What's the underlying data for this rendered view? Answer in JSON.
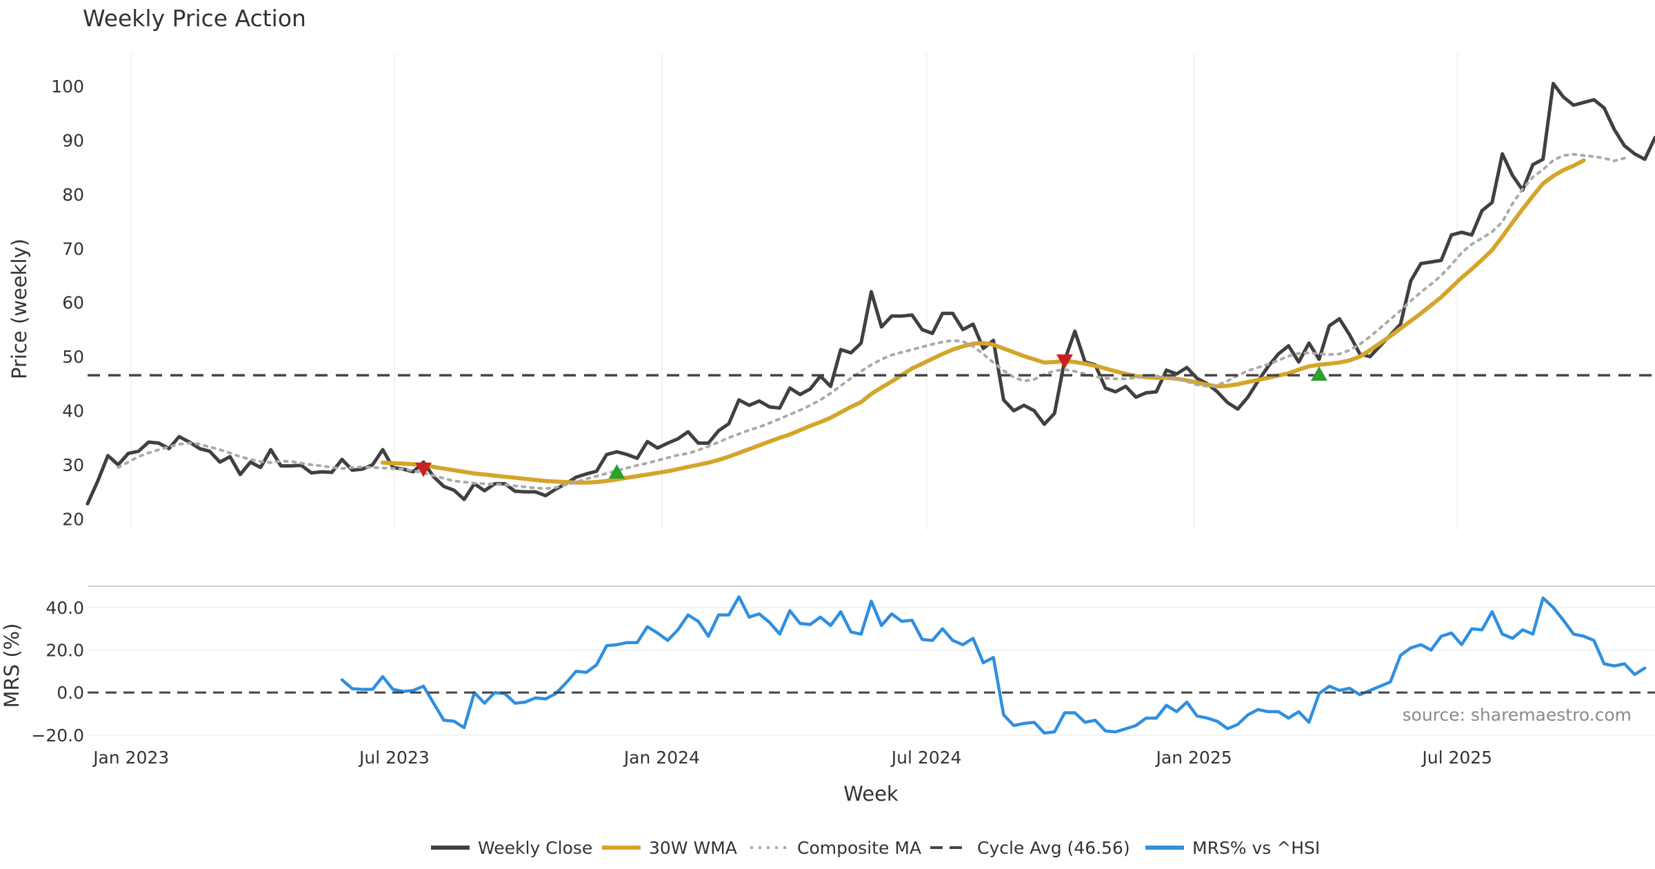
{
  "chart_data": [
    {
      "type": "line",
      "panel": "price",
      "title": "Weekly Price Action",
      "ylabel": "Price (weekly)",
      "xlabel": "Week",
      "x_axis": {
        "start": "2022-12-02",
        "end": "2025-11-14",
        "tick_labels": [
          "Jan 2023",
          "Jul 2023",
          "Jan 2024",
          "Jul 2024",
          "Jan 2025",
          "Jul 2025"
        ],
        "tick_dates": [
          "2023-01-01",
          "2023-07-01",
          "2024-01-01",
          "2024-07-01",
          "2025-01-01",
          "2025-07-01"
        ]
      },
      "ylim": [
        18,
        106
      ],
      "yticks": [
        20,
        30,
        40,
        50,
        60,
        70,
        80,
        90,
        100
      ],
      "grid": true,
      "series": [
        {
          "name": "Weekly Close",
          "color": "#404040",
          "style": "solid",
          "start_week": 0,
          "values": [
            22.8,
            27,
            31.7,
            30,
            32.1,
            32.5,
            34.2,
            34,
            33,
            35.2,
            34.2,
            33,
            32.5,
            30.5,
            31.5,
            28.2,
            30.5,
            29.5,
            32.8,
            29.8,
            29.8,
            29.9,
            28.5,
            28.7,
            28.6,
            31,
            29,
            29.2,
            30,
            32.8,
            29.5,
            29.2,
            28.7,
            30.5,
            27.8,
            26,
            25.3,
            23.6,
            26.5,
            25.2,
            26.5,
            26.5,
            25.1,
            25,
            25,
            24.3,
            25.5,
            26.5,
            27.7,
            28.3,
            28.8,
            31.9,
            32.4,
            31.9,
            31.2,
            34.3,
            33.1,
            34,
            34.8,
            36.1,
            34,
            34,
            36.3,
            37.6,
            42,
            41,
            41.8,
            40.7,
            40.5,
            44.2,
            43,
            44,
            46.4,
            44.5,
            51.3,
            50.7,
            52.5,
            62,
            55.5,
            57.5,
            57.5,
            57.7,
            55,
            54.3,
            58,
            58,
            55,
            56,
            51.5,
            53,
            42,
            40,
            41,
            40,
            37.5,
            39.5,
            49.3,
            54.7,
            49,
            48.5,
            44.2,
            43.5,
            44.5,
            42.5,
            43.3,
            43.5,
            47.5,
            46.8,
            48,
            46,
            45,
            43.5,
            41.5,
            40.3,
            42.5,
            45.5,
            48.2,
            50.5,
            52,
            49,
            52.5,
            49.5,
            55.7,
            57,
            54,
            50.5,
            50,
            52,
            54,
            56,
            64,
            67.2,
            67.5,
            67.8,
            72.5,
            73,
            72.5,
            77,
            78.5,
            87.5,
            83.5,
            80.8,
            85.5,
            86.5,
            100.5,
            98,
            96.5,
            97,
            97.5,
            96,
            92,
            89,
            87.5,
            86.5,
            90.5
          ]
        },
        {
          "name": "30W WMA",
          "color": "#d4a52a",
          "style": "solid",
          "start_week": 29,
          "values": [
            30.4,
            30.3,
            30.2,
            30.1,
            30,
            29.6,
            29.3,
            29,
            28.7,
            28.4,
            28.2,
            28,
            27.8,
            27.6,
            27.4,
            27.2,
            27,
            26.9,
            26.8,
            26.7,
            26.7,
            26.8,
            27,
            27.3,
            27.6,
            27.9,
            28.2,
            28.5,
            28.8,
            29.2,
            29.6,
            30,
            30.4,
            30.9,
            31.5,
            32.2,
            32.9,
            33.6,
            34.3,
            35,
            35.6,
            36.4,
            37.2,
            37.9,
            38.7,
            39.7,
            40.7,
            41.6,
            43.1,
            44.3,
            45.4,
            46.6,
            47.8,
            48.7,
            49.6,
            50.5,
            51.3,
            51.9,
            52.4,
            52.5,
            52.2,
            51.5,
            50.8,
            50.1,
            49.5,
            48.9,
            49,
            49.2,
            49,
            48.7,
            48.3,
            47.8,
            47.3,
            46.8,
            46.4,
            46.2,
            46.1,
            46.1,
            45.9,
            45.6,
            45.2,
            44.8,
            44.5,
            44.6,
            44.9,
            45.3,
            45.7,
            46.1,
            46.5,
            46.9,
            47.6,
            48.2,
            48.5,
            48.7,
            48.9,
            49.3,
            50,
            51.2,
            52.5,
            53.8,
            55.2,
            56.6,
            58,
            59.5,
            61,
            62.8,
            64.6,
            66.2,
            67.9,
            69.7,
            72.2,
            74.8,
            77.3,
            79.7,
            82,
            83.4,
            84.5,
            85.3,
            86.3
          ]
        },
        {
          "name": "Composite MA",
          "color": "#aaaaaa",
          "style": "dotted",
          "start_week": 3,
          "values": [
            29.5,
            30.5,
            31.5,
            32.2,
            32.8,
            33.3,
            33.8,
            34,
            33.8,
            33.3,
            32.8,
            32.2,
            31.5,
            31,
            30.6,
            30.4,
            30.7,
            30.6,
            30.3,
            30,
            29.8,
            29.5,
            29.3,
            29.5,
            29.6,
            29.5,
            29.4,
            29.3,
            29.2,
            28.9,
            28.5,
            28,
            27.5,
            27,
            26.8,
            26.6,
            26.5,
            26.4,
            26.3,
            26.1,
            25.9,
            25.7,
            25.6,
            25.8,
            26.3,
            26.8,
            27.4,
            27.9,
            28.4,
            28.9,
            29.4,
            29.9,
            30.3,
            30.8,
            31.3,
            31.8,
            32.1,
            32.7,
            33.4,
            34.2,
            35,
            35.7,
            36.4,
            37,
            37.7,
            38.5,
            39.3,
            40.1,
            41,
            42,
            43.2,
            44.6,
            46,
            47.3,
            48.5,
            49.5,
            50.3,
            50.8,
            51.3,
            51.8,
            52.3,
            52.7,
            53,
            52.8,
            51.9,
            50.5,
            48.9,
            47.4,
            46.2,
            45.5,
            45.8,
            46.7,
            47.4,
            47.6,
            47.3,
            46.8,
            46.3,
            46,
            45.9,
            45.9,
            46.1,
            46.3,
            46.4,
            46.3,
            45.9,
            45.4,
            44.8,
            44.5,
            44.7,
            45.5,
            46.5,
            47.4,
            48,
            48.6,
            49.3,
            50.1,
            50.6,
            50.7,
            50.5,
            50.4,
            50.5,
            51.2,
            52.3,
            53.7,
            55.3,
            56.9,
            58.5,
            60.3,
            61.9,
            63.4,
            65,
            67,
            69.2,
            70.8,
            71.9,
            73.1,
            74.9,
            78.3,
            81,
            83.2,
            84.6,
            86.3,
            87.2,
            87.4,
            87.2,
            87,
            86.7,
            86.2,
            86.7
          ]
        },
        {
          "name": "Cycle Avg (46.56)",
          "color": "#444444",
          "style": "dashed",
          "value": 46.56
        }
      ],
      "annotations": [
        {
          "type": "sell-signal",
          "marker": "triangle-down",
          "color": "#cc1f1f",
          "week": 33,
          "value": 29
        },
        {
          "type": "buy-signal",
          "marker": "triangle-up",
          "color": "#2ca02c",
          "week": 52,
          "value": 28.7
        },
        {
          "type": "sell-signal",
          "marker": "triangle-down",
          "color": "#cc1f1f",
          "week": 96,
          "value": 49
        },
        {
          "type": "buy-signal",
          "marker": "triangle-up",
          "color": "#2ca02c",
          "week": 121,
          "value": 46.8
        }
      ]
    },
    {
      "type": "line",
      "panel": "mrs",
      "ylabel": "MRS (%)",
      "ylim": [
        -22,
        50
      ],
      "yticks": [
        40,
        20,
        0,
        -20
      ],
      "ytick_labels": [
        "40.0",
        "20.0",
        "0.0",
        "−20.0"
      ],
      "grid": true,
      "series": [
        {
          "name": "MRS% vs ^HSI",
          "color": "#2f8fe0",
          "style": "solid",
          "start_week": 25,
          "values": [
            6,
            1.8,
            1.5,
            1.5,
            7.5,
            1.5,
            0.5,
            1,
            3,
            -5,
            -13,
            -13.5,
            -16.5,
            0,
            -5,
            0,
            -0.5,
            -5,
            -4.5,
            -2.5,
            -3,
            -0.5,
            4.5,
            10,
            9.5,
            13,
            22,
            22.5,
            23.5,
            23.5,
            31,
            28,
            24.5,
            29.5,
            36.5,
            33.5,
            26.5,
            36.5,
            36.5,
            45,
            35.5,
            37,
            33,
            27.5,
            38.5,
            32.5,
            32,
            35.5,
            31.5,
            38,
            28.5,
            27.5,
            43,
            31.5,
            37,
            33.5,
            34,
            25,
            24.5,
            30,
            24.5,
            22.5,
            25.5,
            14,
            16.5,
            -10.5,
            -15.5,
            -14.5,
            -14,
            -19,
            -18.5,
            -9.5,
            -9.5,
            -14,
            -13,
            -18,
            -18.5,
            -17,
            -15.5,
            -12,
            -12,
            -6,
            -9,
            -4.5,
            -11,
            -12,
            -13.5,
            -17,
            -15,
            -10.5,
            -8,
            -9,
            -9,
            -12,
            -9,
            -14,
            -0.5,
            3,
            1,
            2,
            -1,
            1,
            3,
            5,
            17.5,
            21,
            22.5,
            20,
            26.5,
            28,
            22.5,
            30,
            29.5,
            38,
            27.5,
            25.5,
            29.5,
            27.5,
            44.5,
            40,
            34,
            27.5,
            26.5,
            24.5,
            13.5,
            12.5,
            13.5,
            8.5,
            11.5
          ]
        },
        {
          "name": "Zero line",
          "color": "#444444",
          "style": "dashed",
          "value": 0
        }
      ],
      "annotations": [
        {
          "type": "source",
          "text": "source: sharemaestro.com"
        }
      ]
    }
  ],
  "legend": {
    "placement": "bottom-center",
    "items": [
      {
        "label": "Weekly Close",
        "color": "#404040",
        "style": "solid"
      },
      {
        "label": "30W WMA",
        "color": "#d4a52a",
        "style": "solid"
      },
      {
        "label": "Composite MA",
        "color": "#aaaaaa",
        "style": "dotted"
      },
      {
        "label": "Cycle Avg (46.56)",
        "color": "#444444",
        "style": "dashed"
      },
      {
        "label": "MRS% vs ^HSI",
        "color": "#2f8fe0",
        "style": "solid"
      }
    ]
  }
}
